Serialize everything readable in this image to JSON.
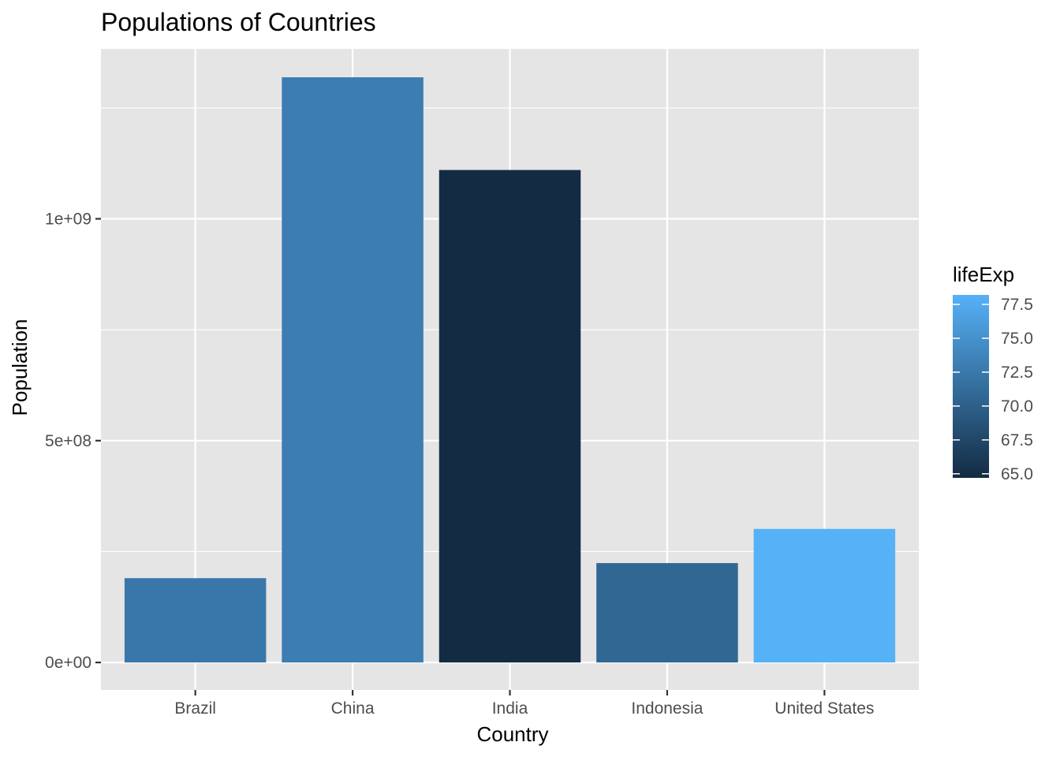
{
  "chart_data": {
    "type": "bar",
    "title": "Populations of Countries",
    "xlabel": "Country",
    "ylabel": "Population",
    "categories": [
      "Brazil",
      "China",
      "India",
      "Indonesia",
      "United States"
    ],
    "values": [
      190000000,
      1319000000,
      1110000000,
      224000000,
      301000000
    ],
    "fill_var": "lifeExp",
    "fill_values": [
      72.4,
      73.0,
      64.7,
      70.7,
      78.2
    ],
    "ylim": [
      -62000000,
      1383000000
    ],
    "y_ticks": [
      0,
      500000000,
      1000000000
    ],
    "y_tick_labels": [
      "0e+00",
      "5e+08",
      "1e+09"
    ],
    "grid": true,
    "panel_background": "#e5e5e5",
    "gridline_color": "#ffffff",
    "legend": {
      "title": "lifeExp",
      "position": "right",
      "range": [
        64.7,
        78.2
      ],
      "breaks": [
        65.0,
        67.5,
        70.0,
        72.5,
        75.0,
        77.5
      ],
      "break_labels": [
        "65.0",
        "67.5",
        "70.0",
        "72.5",
        "75.0",
        "77.5"
      ],
      "low_color": "#132b43",
      "high_color": "#56b1f7"
    }
  }
}
